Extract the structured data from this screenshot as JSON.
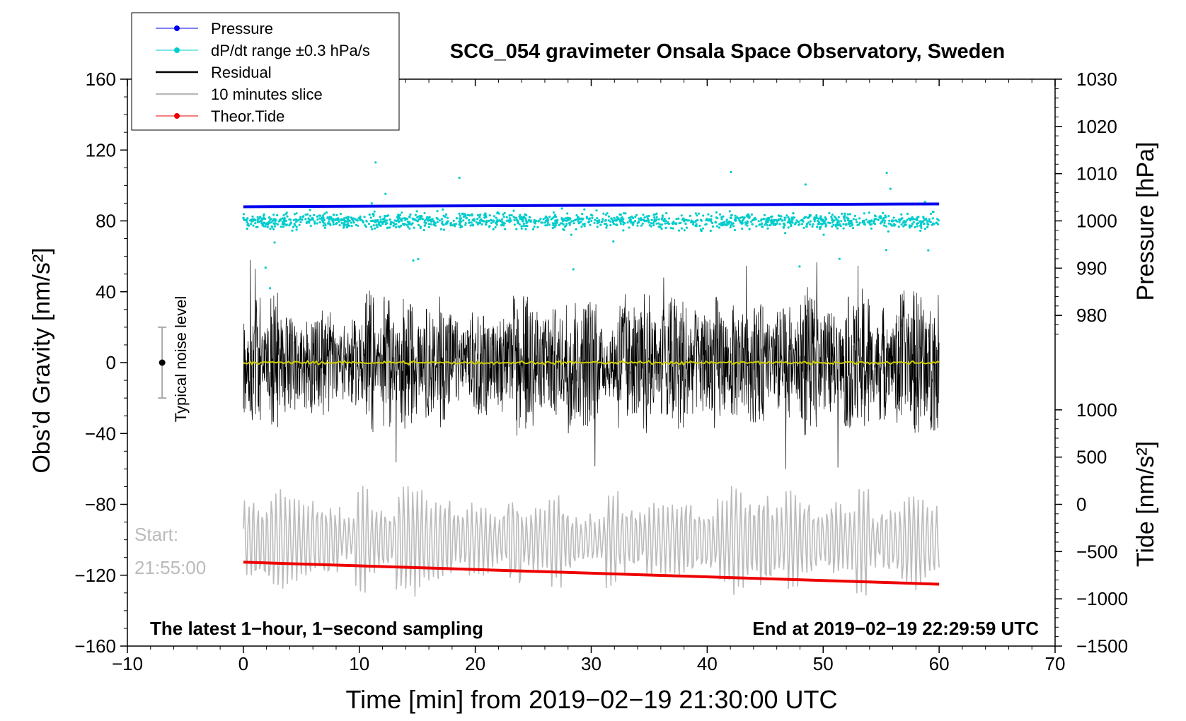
{
  "chart_data": {
    "type": "line",
    "title": "SCG_054 gravimeter Onsala Space Observatory, Sweden",
    "xlabel": "Time [min] from 2019−02−19 21:30:00 UTC",
    "ylabel_left": "Obs’d Gravity [nm/s²]",
    "ylabel_right_top": "Pressure [hPa]",
    "ylabel_right_bottom": "Tide [nm/s²]",
    "xlim": [
      -10,
      70
    ],
    "ylim_left": [
      -160,
      160
    ],
    "x_ticks": [
      "−10",
      "0",
      "10",
      "20",
      "30",
      "40",
      "50",
      "60",
      "70"
    ],
    "y_left_ticks": [
      "160",
      "120",
      "80",
      "40",
      "0",
      "−40",
      "−80",
      "−120",
      "−160"
    ],
    "pressure_ticks": [
      "1030",
      "1020",
      "1010",
      "1000",
      "990",
      "980"
    ],
    "tide_ticks": [
      "1000",
      "500",
      "0",
      "−500",
      "−1000",
      "−1500"
    ],
    "legend": [
      {
        "label": "Pressure",
        "color": "#0000ee",
        "style": "line-dot"
      },
      {
        "label": "dP/dt range ±0.3 hPa/s",
        "color": "#00cccc",
        "style": "line-dot"
      },
      {
        "label": "Residual",
        "color": "#000000",
        "style": "line"
      },
      {
        "label": "10 minutes slice",
        "color": "#bbbbbb",
        "style": "line"
      },
      {
        "label": "Theor.Tide",
        "color": "#ee0000",
        "style": "line-dot"
      }
    ],
    "series": [
      {
        "name": "Pressure",
        "axis": "pressure_hPa",
        "x": [
          0,
          60
        ],
        "values": [
          1003.0,
          1003.6
        ],
        "color": "#0000ee"
      },
      {
        "name": "dP/dt range ±0.3 hPa/s",
        "axis": "left_nm_s2",
        "x_range": [
          0,
          60
        ],
        "center": 80,
        "spread": 5,
        "outlier_max": 113,
        "outlier_min": 42,
        "color": "#00cccc"
      },
      {
        "name": "Residual",
        "axis": "left_nm_s2",
        "x_range": [
          0,
          60
        ],
        "center": 0,
        "typical_envelope": 35,
        "max": 60,
        "min": -67,
        "color": "#000000"
      },
      {
        "name": "Residual smoothed",
        "axis": "left_nm_s2",
        "x_range": [
          0,
          60
        ],
        "center": 0,
        "color": "#cccc00"
      },
      {
        "name": "10 minutes slice",
        "axis": "left_nm_s2",
        "x_range": [
          0,
          60
        ],
        "center": -100,
        "amplitude": 25,
        "max": -55,
        "min": -143,
        "color": "#bbbbbb"
      },
      {
        "name": "Theor.Tide",
        "axis": "tide_nm_s2",
        "x": [
          0,
          60
        ],
        "values": [
          -612,
          -845
        ],
        "color": "#ee0000"
      }
    ],
    "noise_bar": {
      "label": "Typical noise level",
      "x": -7,
      "center": 0,
      "low": -20,
      "high": 20
    },
    "annotations": {
      "start_label": "Start:",
      "start_time": "21:55:00",
      "bottom_left": "The latest 1−hour, 1−second sampling",
      "bottom_right": "End at 2019−02−19 22:29:59 UTC"
    }
  }
}
